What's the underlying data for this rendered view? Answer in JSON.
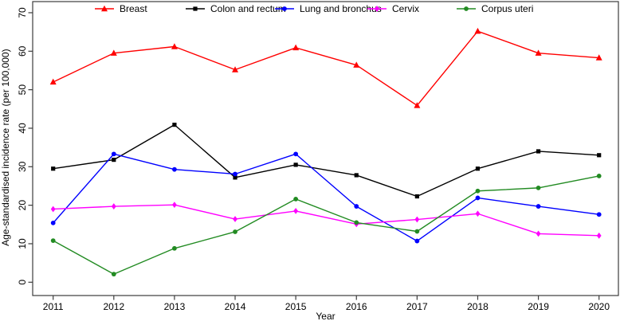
{
  "figure": {
    "xlabel": "Year",
    "ylabel": "Age-standardised incidence rate (per 100,000)"
  },
  "chart_data": {
    "type": "line",
    "title": "",
    "xlabel": "Year",
    "ylabel": "Age-standardised incidence rate (per 100,000)",
    "x": [
      2011,
      2012,
      2013,
      2014,
      2015,
      2016,
      2017,
      2018,
      2019,
      2020
    ],
    "ylim": [
      0,
      70
    ],
    "yticks": [
      0,
      10,
      20,
      30,
      40,
      50,
      60,
      70
    ],
    "grid": false,
    "legend_position": "top-inside-horizontal",
    "frame": true,
    "series": [
      {
        "name": "Breast",
        "color": "#ff0000",
        "marker": "triangle",
        "values": [
          52.0,
          59.5,
          61.2,
          55.2,
          60.9,
          56.4,
          45.9,
          65.2,
          59.5,
          58.3
        ]
      },
      {
        "name": "Colon and rectum",
        "color": "#000000",
        "marker": "square",
        "values": [
          29.5,
          31.8,
          40.9,
          27.2,
          30.5,
          27.8,
          22.3,
          29.5,
          34.0,
          33.0
        ]
      },
      {
        "name": "Lung and bronchus",
        "color": "#0000ff",
        "marker": "circle",
        "values": [
          15.4,
          33.3,
          29.3,
          28.1,
          33.3,
          19.7,
          10.7,
          21.9,
          19.7,
          17.6
        ]
      },
      {
        "name": "Cervix",
        "color": "#ff00ff",
        "marker": "diamond",
        "values": [
          19.0,
          19.7,
          20.1,
          16.4,
          18.5,
          15.1,
          16.3,
          17.8,
          12.6,
          12.1
        ]
      },
      {
        "name": "Corpus uteri",
        "color": "#228b22",
        "marker": "circle",
        "values": [
          10.8,
          2.1,
          8.8,
          13.1,
          21.6,
          15.5,
          13.2,
          23.7,
          24.5,
          27.6
        ]
      }
    ]
  },
  "axis_style": {
    "frame_color": "#3c3c3c",
    "text_color": "#000000"
  }
}
